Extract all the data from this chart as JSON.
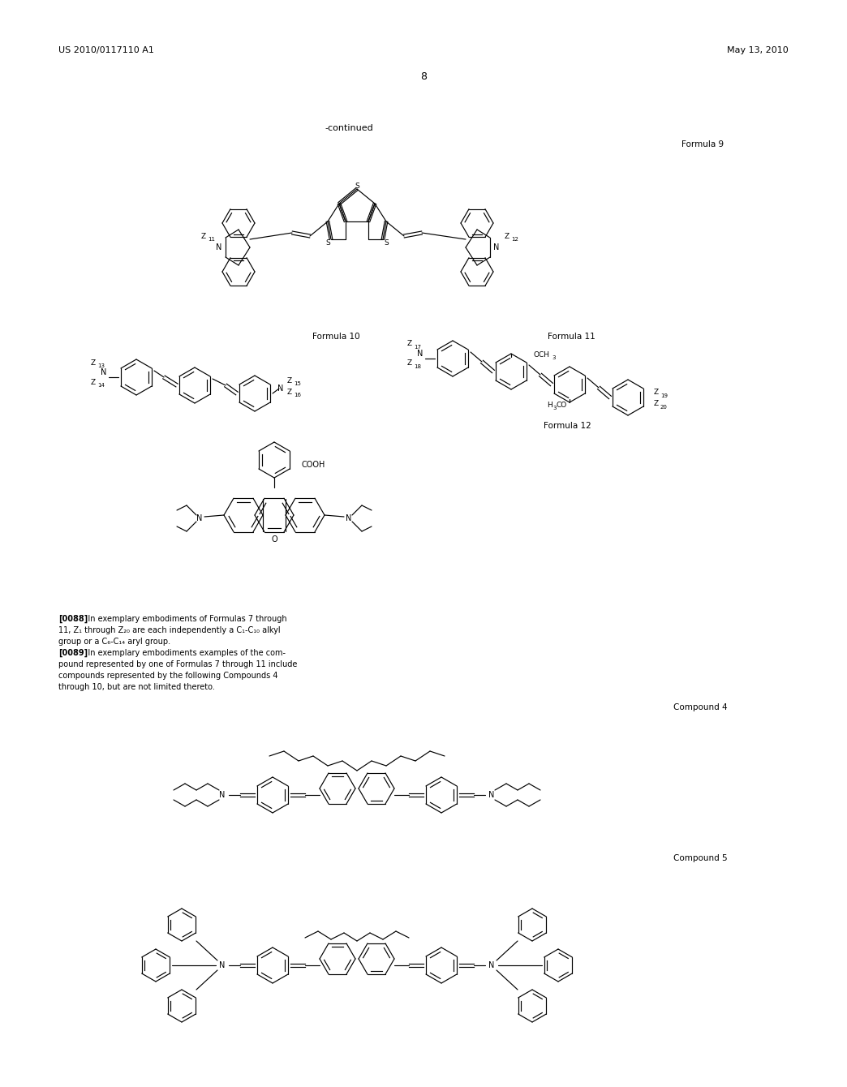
{
  "page_number": "8",
  "top_left_text": "US 2010/0117110 A1",
  "top_right_text": "May 13, 2010",
  "continued_label": "-continued",
  "formula9_label": "Formula 9",
  "formula10_label": "Formula 10",
  "formula11_label": "Formula 11",
  "formula12_label": "Formula 12",
  "compound4_label": "Compound 4",
  "compound5_label": "Compound 5",
  "background_color": "#ffffff",
  "text_color": "#000000"
}
